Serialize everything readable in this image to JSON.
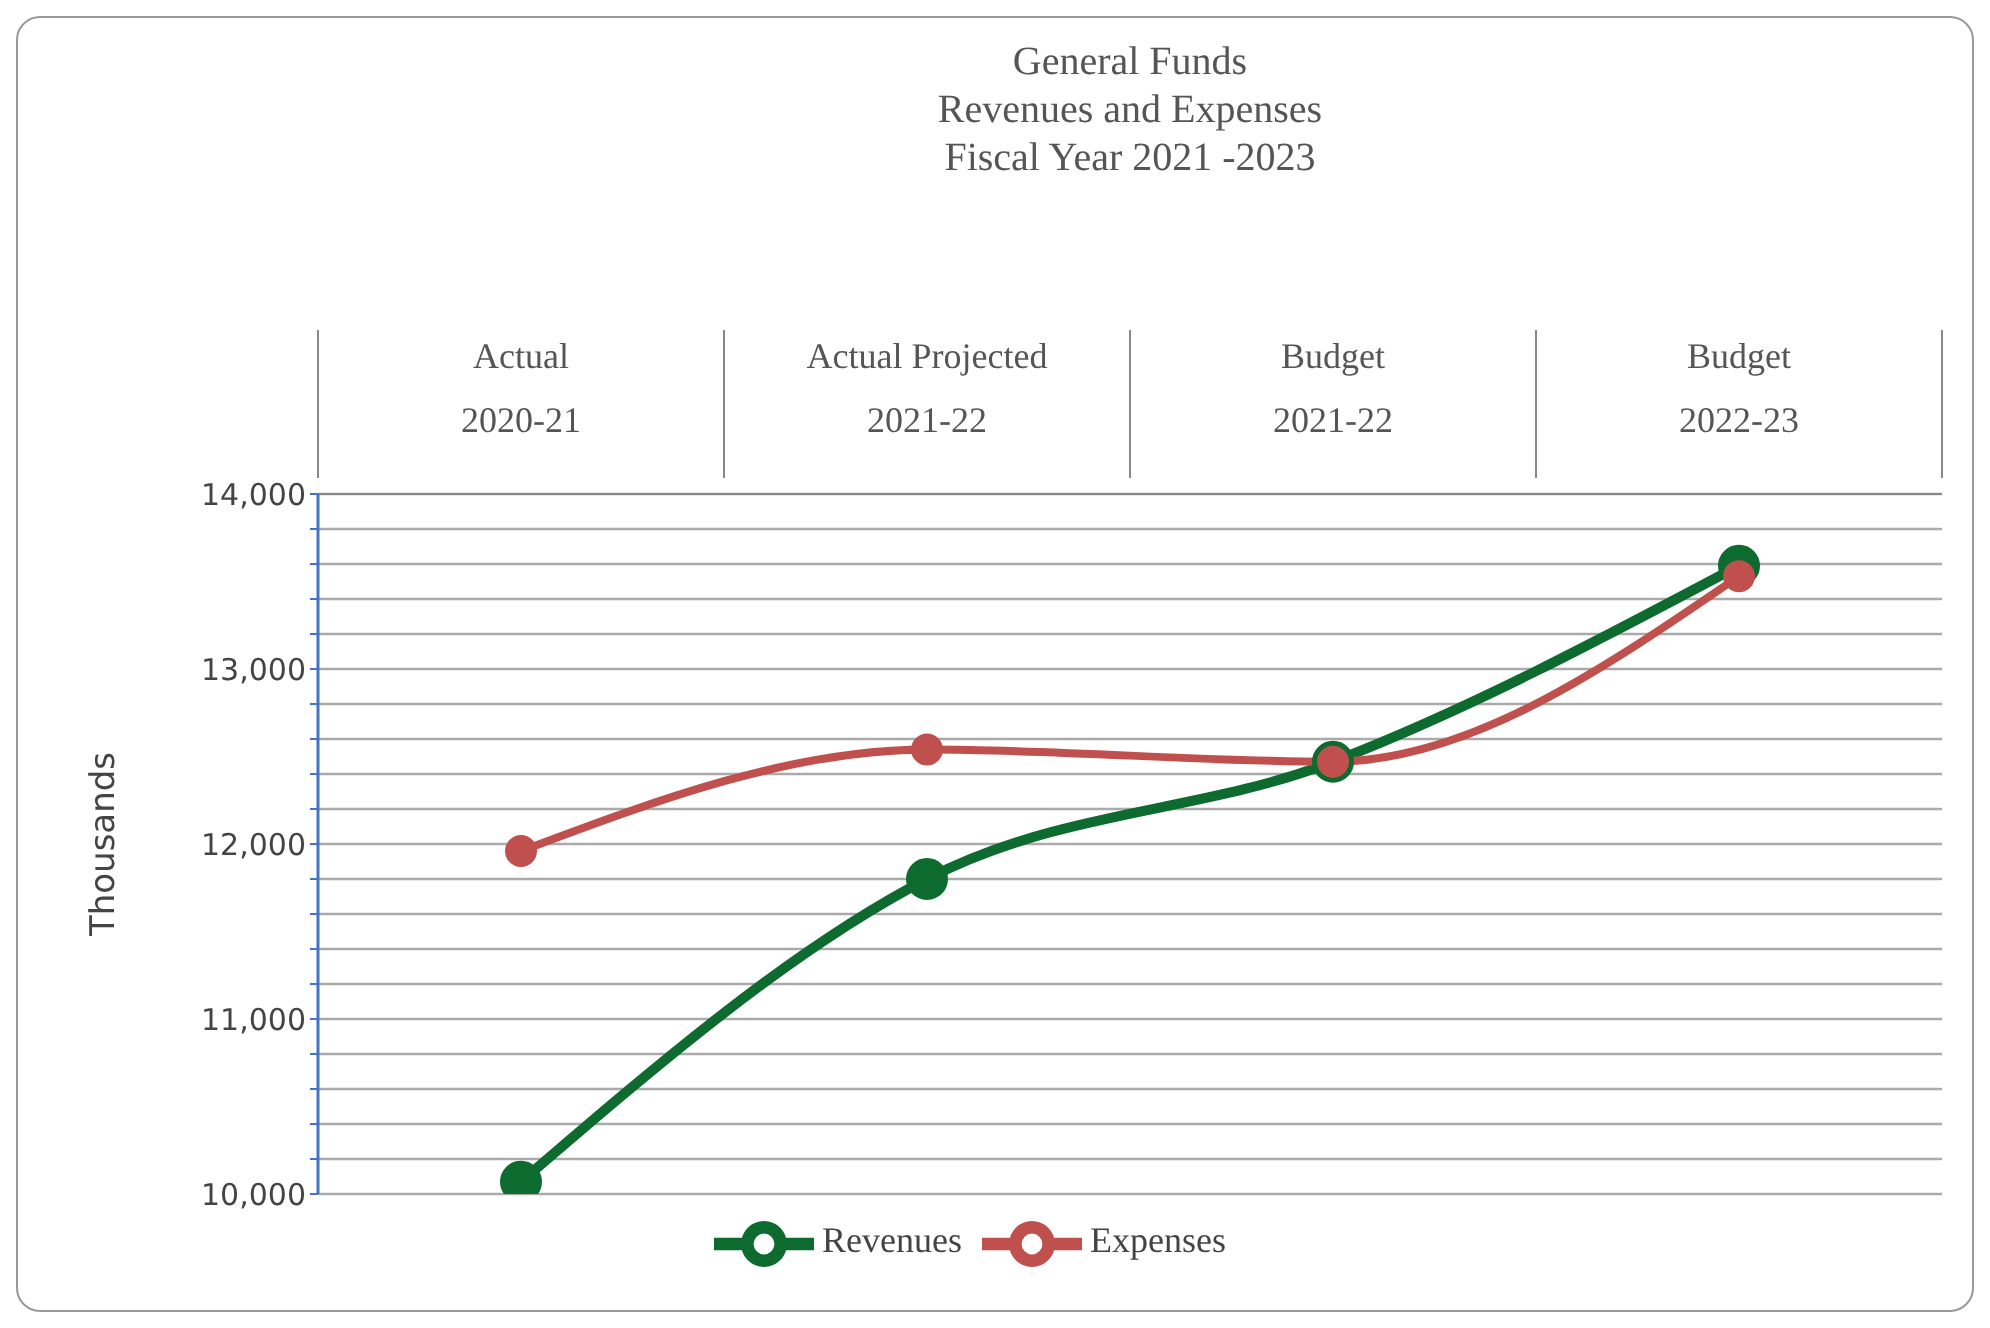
{
  "chart_data": {
    "type": "line",
    "title": "General Funds\nRevenues and Expenses\nFiscal Year 2021 -2023",
    "ylabel": "Thousands",
    "categories": [
      "Actual\n2020-21",
      "Actual Projected\n2021-22",
      "Budget\n2021-22",
      "Budget\n2022-23"
    ],
    "series": [
      {
        "name": "Revenues",
        "color": "#0e6b2f",
        "values": [
          10070,
          11800,
          12470,
          13590
        ]
      },
      {
        "name": "Expenses",
        "color": "#c0504d",
        "values": [
          11960,
          12540,
          12470,
          13530
        ]
      }
    ],
    "ylim": [
      10000,
      14000
    ],
    "yticks": [
      {
        "value": 10000,
        "label": "10,000"
      },
      {
        "value": 10200,
        "label": null
      },
      {
        "value": 10400,
        "label": null
      },
      {
        "value": 10600,
        "label": null
      },
      {
        "value": 10800,
        "label": null
      },
      {
        "value": 11000,
        "label": "11,000"
      },
      {
        "value": 11200,
        "label": null
      },
      {
        "value": 11400,
        "label": null
      },
      {
        "value": 11600,
        "label": null
      },
      {
        "value": 11800,
        "label": null
      },
      {
        "value": 12000,
        "label": "12,000"
      },
      {
        "value": 12200,
        "label": null
      },
      {
        "value": 12400,
        "label": null
      },
      {
        "value": 12600,
        "label": null
      },
      {
        "value": 12800,
        "label": null
      },
      {
        "value": 13000,
        "label": "13,000"
      },
      {
        "value": 13200,
        "label": null
      },
      {
        "value": 13400,
        "label": null
      },
      {
        "value": 13600,
        "label": null
      },
      {
        "value": 13800,
        "label": null
      },
      {
        "value": 14000,
        "label": "14,000"
      }
    ],
    "grid": "y",
    "legend": "bottom",
    "marker": "circle",
    "line_style": "solid"
  }
}
